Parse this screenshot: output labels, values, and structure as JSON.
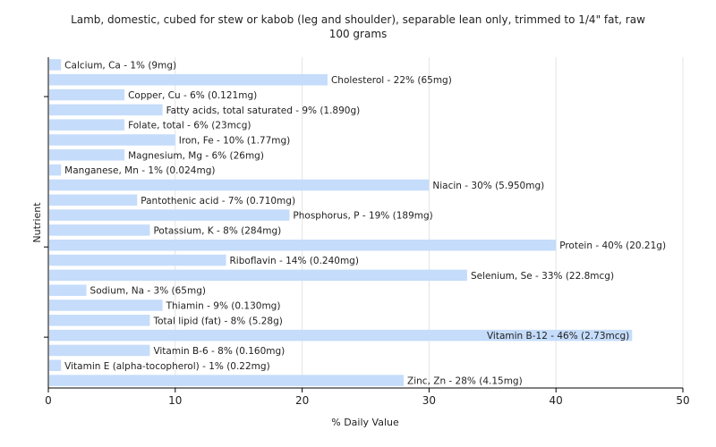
{
  "chart_data": {
    "type": "bar",
    "orientation": "horizontal",
    "title_line1": "Lamb, domestic, cubed for stew or kabob (leg and shoulder), separable lean only, trimmed to 1/4\" fat, raw",
    "title_line2": "100 grams",
    "xlabel": "% Daily Value",
    "ylabel": "Nutrient",
    "xlim": [
      0,
      50
    ],
    "xticks": [
      0,
      10,
      20,
      30,
      40,
      50
    ],
    "grid": true,
    "bar_color": "#c5dcfb",
    "categories": [
      "Calcium, Ca - 1% (9mg)",
      "Cholesterol - 22% (65mg)",
      "Copper, Cu - 6% (0.121mg)",
      "Fatty acids, total saturated - 9% (1.890g)",
      "Folate, total - 6% (23mcg)",
      "Iron, Fe - 10% (1.77mg)",
      "Magnesium, Mg - 6% (26mg)",
      "Manganese, Mn - 1% (0.024mg)",
      "Niacin - 30% (5.950mg)",
      "Pantothenic acid - 7% (0.710mg)",
      "Phosphorus, P - 19% (189mg)",
      "Potassium, K - 8% (284mg)",
      "Protein - 40% (20.21g)",
      "Riboflavin - 14% (0.240mg)",
      "Selenium, Se - 33% (22.8mcg)",
      "Sodium, Na - 3% (65mg)",
      "Thiamin - 9% (0.130mg)",
      "Total lipid (fat) - 8% (5.28g)",
      "Vitamin B-12 - 46% (2.73mcg)",
      "Vitamin B-6 - 8% (0.160mg)",
      "Vitamin E (alpha-tocopherol) - 1% (0.22mg)",
      "Zinc, Zn - 28% (4.15mg)"
    ],
    "values": [
      1,
      22,
      6,
      9,
      6,
      10,
      6,
      1,
      30,
      7,
      19,
      8,
      40,
      14,
      33,
      3,
      9,
      8,
      46,
      8,
      1,
      28
    ]
  }
}
